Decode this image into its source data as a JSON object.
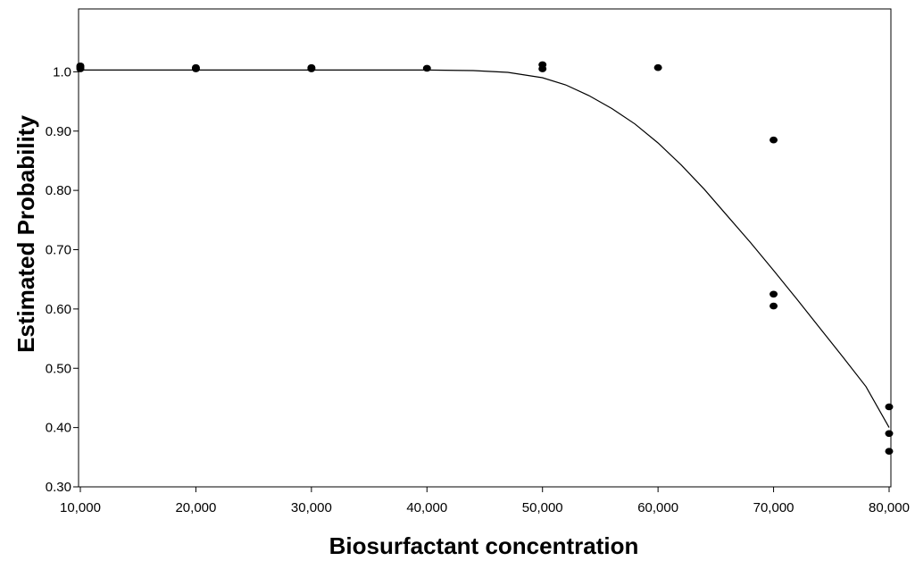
{
  "chart_data": {
    "type": "scatter",
    "title": "",
    "xlabel": "Biosurfactant concentration",
    "ylabel": "Estimated  Probability",
    "xlim": [
      10000,
      80000
    ],
    "ylim": [
      0.3,
      1.1
    ],
    "x_ticks": [
      10000,
      20000,
      30000,
      40000,
      50000,
      60000,
      70000,
      80000
    ],
    "x_tick_labels": [
      "10,000",
      "20,000",
      "30,000",
      "40,000",
      "50,000",
      "60,000",
      "70,000",
      "80,000"
    ],
    "y_ticks": [
      0.3,
      0.4,
      0.5,
      0.6,
      0.7,
      0.8,
      0.9,
      1.0
    ],
    "y_tick_labels": [
      "0.30",
      "0.40",
      "0.50",
      "0.60",
      "0.70",
      "0.80",
      "0.90",
      "1.0"
    ],
    "grid": false,
    "legend": "none",
    "series": [
      {
        "kind": "points",
        "color": "#000000",
        "points": [
          {
            "x": 10000,
            "y": 1.005
          },
          {
            "x": 10000,
            "y": 1.01
          },
          {
            "x": 10000,
            "y": 1.008
          },
          {
            "x": 20000,
            "y": 1.005
          },
          {
            "x": 20000,
            "y": 1.007
          },
          {
            "x": 30000,
            "y": 1.005
          },
          {
            "x": 30000,
            "y": 1.007
          },
          {
            "x": 40000,
            "y": 1.006
          },
          {
            "x": 50000,
            "y": 1.005
          },
          {
            "x": 50000,
            "y": 1.012
          },
          {
            "x": 60000,
            "y": 1.007
          },
          {
            "x": 70000,
            "y": 0.885
          },
          {
            "x": 70000,
            "y": 0.625
          },
          {
            "x": 70000,
            "y": 0.605
          },
          {
            "x": 80000,
            "y": 0.435
          },
          {
            "x": 80000,
            "y": 0.39
          },
          {
            "x": 80000,
            "y": 0.36
          }
        ]
      },
      {
        "kind": "line",
        "color": "#000000",
        "points": [
          {
            "x": 10000,
            "y": 1.003
          },
          {
            "x": 20000,
            "y": 1.003
          },
          {
            "x": 30000,
            "y": 1.003
          },
          {
            "x": 40000,
            "y": 1.003
          },
          {
            "x": 44000,
            "y": 1.002
          },
          {
            "x": 47000,
            "y": 0.999
          },
          {
            "x": 50000,
            "y": 0.99
          },
          {
            "x": 52000,
            "y": 0.978
          },
          {
            "x": 54000,
            "y": 0.96
          },
          {
            "x": 56000,
            "y": 0.938
          },
          {
            "x": 58000,
            "y": 0.912
          },
          {
            "x": 60000,
            "y": 0.88
          },
          {
            "x": 62000,
            "y": 0.843
          },
          {
            "x": 64000,
            "y": 0.802
          },
          {
            "x": 66000,
            "y": 0.757
          },
          {
            "x": 68000,
            "y": 0.712
          },
          {
            "x": 70000,
            "y": 0.665
          },
          {
            "x": 72000,
            "y": 0.617
          },
          {
            "x": 74000,
            "y": 0.568
          },
          {
            "x": 76000,
            "y": 0.519
          },
          {
            "x": 78000,
            "y": 0.469
          },
          {
            "x": 80000,
            "y": 0.4
          }
        ]
      }
    ]
  }
}
